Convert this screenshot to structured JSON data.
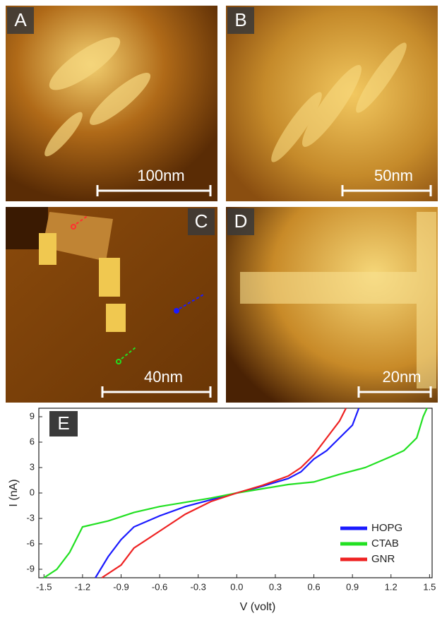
{
  "panels": [
    {
      "label": "A",
      "scale": "100nm"
    },
    {
      "label": "B",
      "scale": "50nm"
    },
    {
      "label": "C",
      "scale": "40nm"
    },
    {
      "label": "D",
      "scale": "20nm"
    }
  ],
  "chart_data": {
    "type": "line",
    "panel_label": "E",
    "x_label": "V (volt)",
    "y_label": "I (nA)",
    "xlim": [
      -1.54,
      1.52
    ],
    "ylim": [
      -10,
      10
    ],
    "xticks": [
      -1.5,
      -1.2,
      -0.9,
      -0.6,
      -0.3,
      {
        "value": 0,
        "label": "0.0"
      },
      0.3,
      0.6,
      0.9,
      1.2,
      1.5
    ],
    "yticks": [
      -9,
      -6,
      -3,
      0,
      3,
      6,
      9
    ],
    "legend": "lower right",
    "series": [
      {
        "name": "HOPG",
        "color": "#1a1aff",
        "x": [
          -1.1,
          -1.0,
          -0.9,
          -0.8,
          -0.6,
          -0.4,
          -0.2,
          0,
          0.2,
          0.4,
          0.5,
          0.6,
          0.7,
          0.8,
          0.9,
          0.95
        ],
        "values": [
          -10,
          -7.5,
          -5.5,
          -4,
          -2.7,
          -1.6,
          -0.8,
          0,
          0.8,
          1.7,
          2.5,
          4,
          5,
          6.5,
          8,
          10
        ]
      },
      {
        "name": "CTAB",
        "color": "#22e022",
        "x": [
          -1.5,
          -1.4,
          -1.3,
          -1.2,
          -1.0,
          -0.8,
          -0.6,
          -0.4,
          -0.2,
          0,
          0.2,
          0.4,
          0.6,
          0.8,
          1.0,
          1.2,
          1.3,
          1.4,
          1.45,
          1.48
        ],
        "values": [
          -10,
          -9,
          -7,
          -4,
          -3.3,
          -2.3,
          -1.6,
          -1.1,
          -0.6,
          0,
          0.5,
          1,
          1.3,
          2.2,
          3,
          4.3,
          5,
          6.5,
          9,
          10
        ]
      },
      {
        "name": "GNR",
        "color": "#ee2222",
        "x": [
          -1.05,
          -0.9,
          -0.8,
          -0.6,
          -0.4,
          -0.2,
          0,
          0.2,
          0.4,
          0.5,
          0.6,
          0.7,
          0.8,
          0.85
        ],
        "values": [
          -10,
          -8.5,
          -6.5,
          -4.5,
          -2.5,
          -1,
          0,
          0.9,
          2,
          3,
          4.5,
          6.5,
          8.5,
          10
        ]
      }
    ]
  }
}
